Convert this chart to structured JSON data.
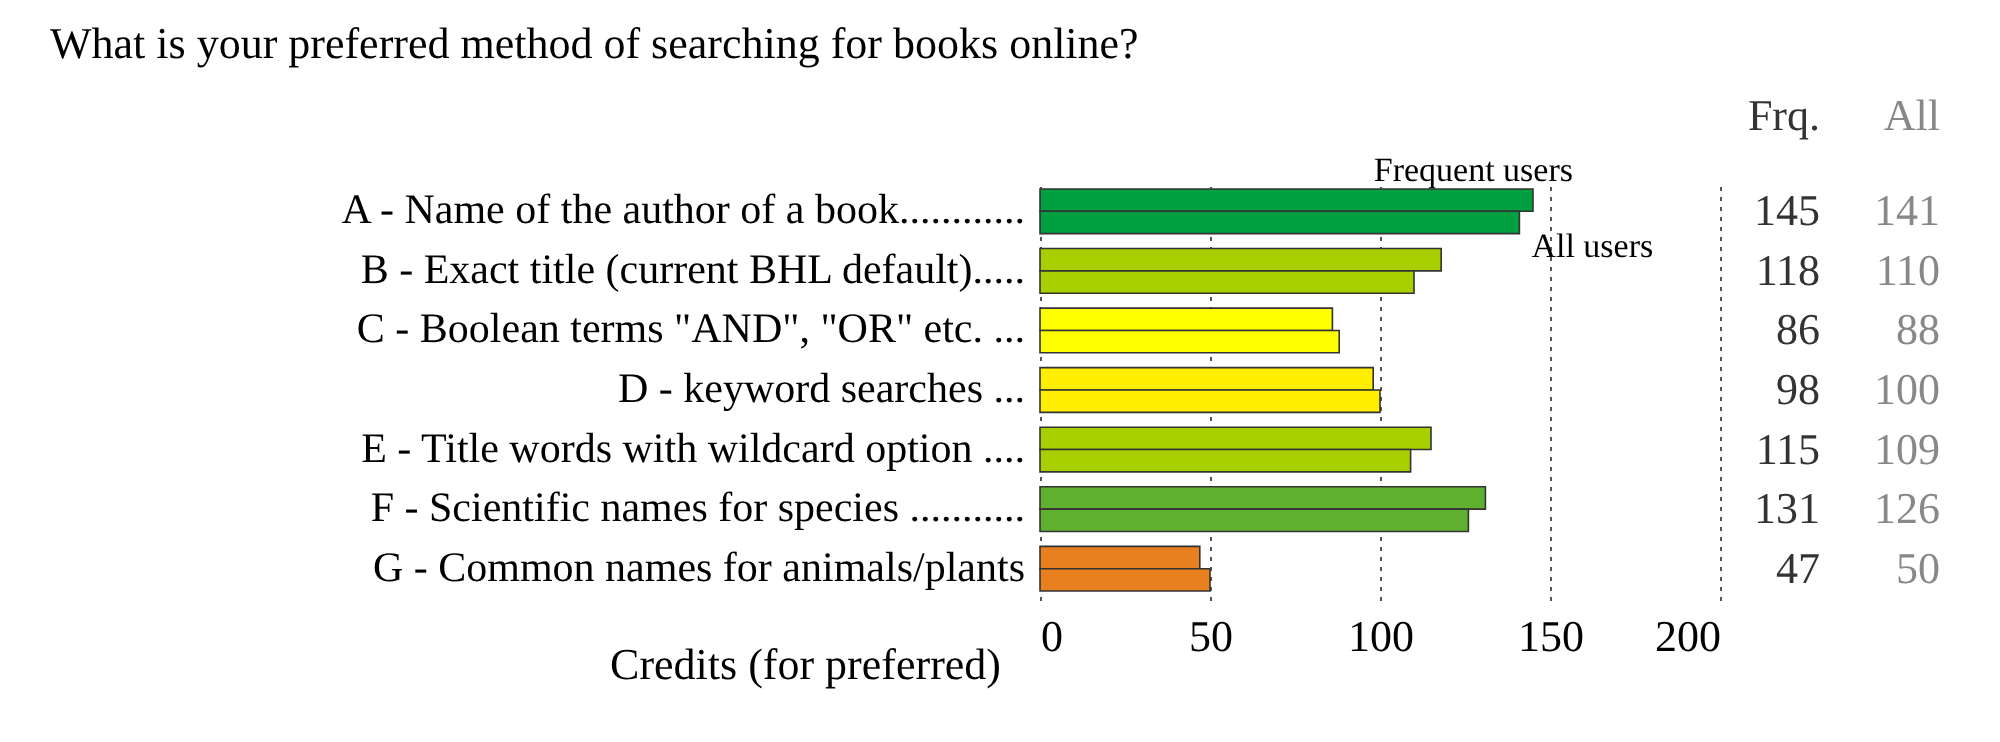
{
  "chart_data": {
    "type": "bar",
    "orientation": "horizontal",
    "title": "What is your preferred method of searching for books online?",
    "xlabel": "Credits (for preferred)",
    "categories": [
      "A - Name of the author of a book............",
      "B - Exact title (current BHL default).....",
      "C - Boolean terms \"AND\", \"OR\" etc. ...",
      "D - keyword searches ...",
      "E - Title words with wildcard option ....",
      "F - Scientific names for species ...........",
      "G - Common names for animals/plants"
    ],
    "series": [
      {
        "name": "Frequent users",
        "colors": [
          "#00a040",
          "#a8d000",
          "#ffff00",
          "#ffee00",
          "#a8d000",
          "#60b030",
          "#e88020"
        ],
        "values": [
          145,
          118,
          86,
          98,
          115,
          131,
          47
        ]
      },
      {
        "name": "All users",
        "colors": [
          "#00a040",
          "#a8d000",
          "#ffff00",
          "#ffee00",
          "#a8d000",
          "#60b030",
          "#e88020"
        ],
        "values": [
          141,
          110,
          88,
          100,
          109,
          126,
          50
        ]
      }
    ],
    "annotations": [
      "Frq.",
      "All"
    ],
    "xlim": [
      0,
      200
    ],
    "xticks": [
      0,
      50,
      100,
      150,
      200
    ],
    "grid": true,
    "legend": false,
    "data_labels": true
  }
}
